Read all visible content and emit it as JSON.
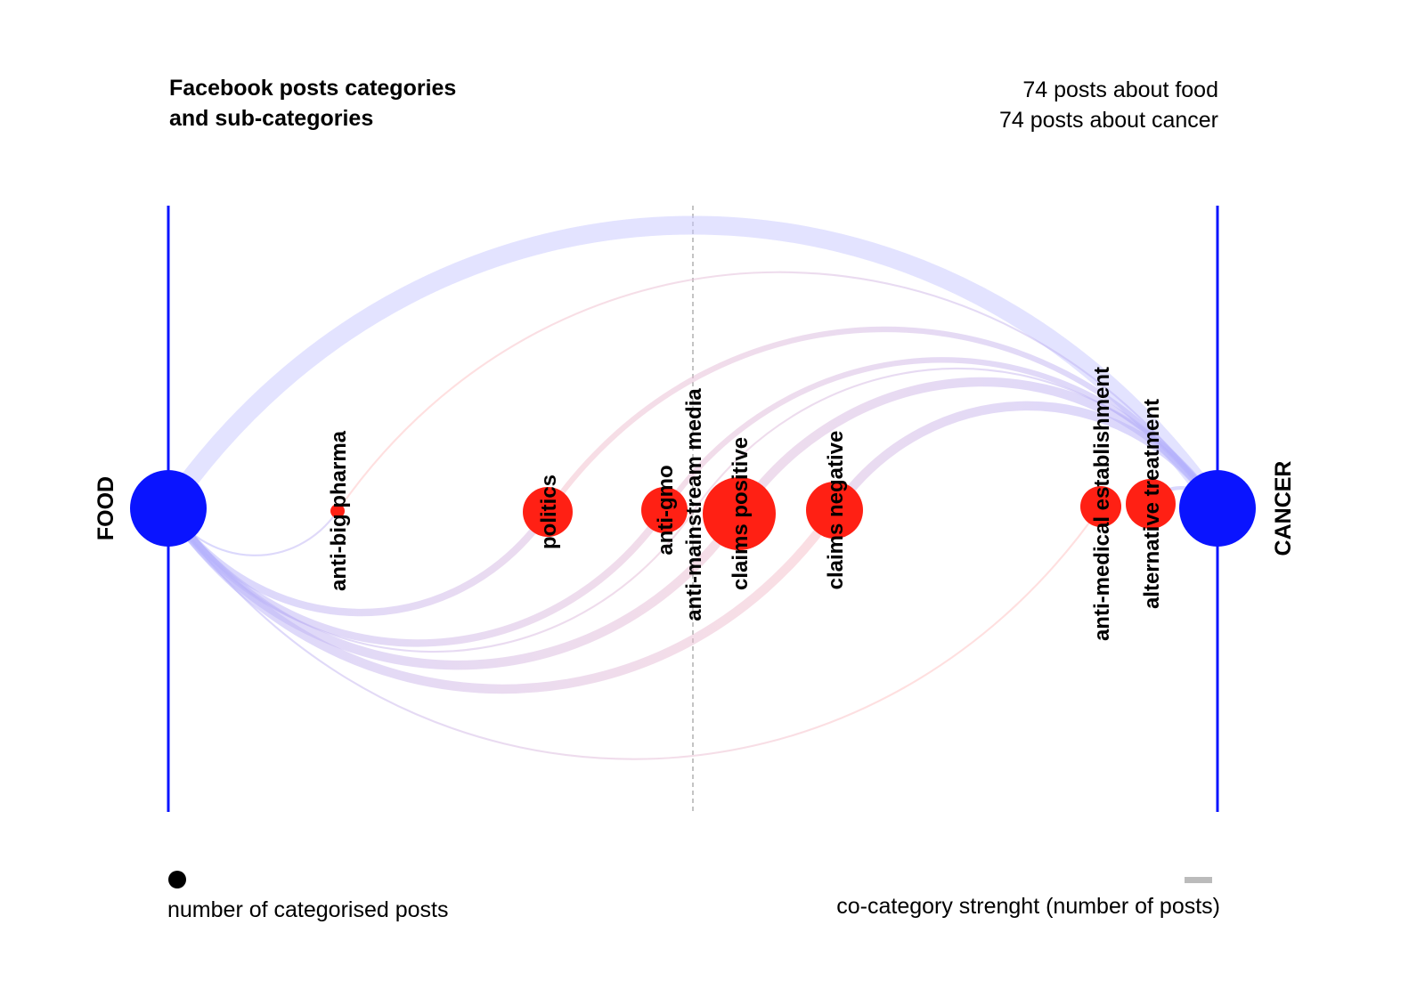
{
  "title": {
    "line1": "Facebook posts categories",
    "line2": "and sub-categories"
  },
  "counts": {
    "food": "74 posts about food",
    "cancer": "74 posts about cancer"
  },
  "legend": {
    "nodes": "number of categorised posts",
    "edges": "co-category strenght (number of posts)"
  },
  "colors": {
    "main": "#0a14ff",
    "sub": "#ff2014",
    "edge_main": "#c8c8ff",
    "edge_sub": "#ffc8c8",
    "legend_bar": "#bbbbbb"
  },
  "nodes": [
    {
      "id": "food",
      "label": "FOOD",
      "type": "main"
    },
    {
      "id": "cancer",
      "label": "CANCER",
      "type": "main"
    },
    {
      "id": "anti-big-pharma",
      "label": "anti-big pharma",
      "type": "sub"
    },
    {
      "id": "politics",
      "label": "politics",
      "type": "sub"
    },
    {
      "id": "anti-gmo",
      "label": "anti-gmo",
      "type": "sub"
    },
    {
      "id": "anti-mainstream-media",
      "label": "anti-mainstream media",
      "type": "sub"
    },
    {
      "id": "claims-positive",
      "label": "claims positive",
      "type": "sub"
    },
    {
      "id": "claims-negative",
      "label": "claims negative",
      "type": "sub"
    },
    {
      "id": "anti-medical-establishment",
      "label": "anti-medical establishment",
      "type": "sub"
    },
    {
      "id": "alternative-treatment",
      "label": "alternative treatment",
      "type": "sub"
    }
  ],
  "edges": [
    {
      "from": "food",
      "to": "cancer",
      "weight": 10
    },
    {
      "from": "food",
      "to": "anti-big-pharma",
      "weight": 1
    },
    {
      "from": "food",
      "to": "politics",
      "weight": 4
    },
    {
      "from": "food",
      "to": "anti-gmo",
      "weight": 4
    },
    {
      "from": "food",
      "to": "anti-mainstream-media",
      "weight": 1
    },
    {
      "from": "food",
      "to": "claims-positive",
      "weight": 5
    },
    {
      "from": "food",
      "to": "claims-negative",
      "weight": 5
    },
    {
      "from": "food",
      "to": "anti-medical-establishment",
      "weight": 1
    },
    {
      "from": "anti-big-pharma",
      "to": "cancer",
      "weight": 1
    },
    {
      "from": "politics",
      "to": "cancer",
      "weight": 3
    },
    {
      "from": "anti-gmo",
      "to": "cancer",
      "weight": 3
    },
    {
      "from": "anti-mainstream-media",
      "to": "cancer",
      "weight": 1
    },
    {
      "from": "claims-positive",
      "to": "cancer",
      "weight": 5
    },
    {
      "from": "claims-negative",
      "to": "cancer",
      "weight": 5
    },
    {
      "from": "alternative-treatment",
      "to": "cancer",
      "weight": 2
    }
  ]
}
